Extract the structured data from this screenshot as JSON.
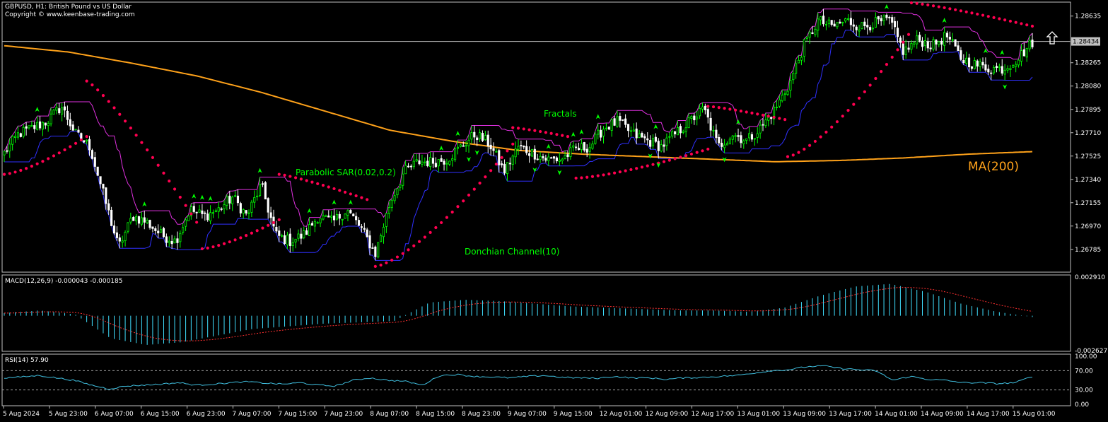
{
  "header": {
    "symbol_line": "GBPUSD, H1:  British Pound vs US Dollar",
    "copyright": "Copyright © www.keenbase-trading.com"
  },
  "annotations": {
    "fractals": "Fractals",
    "parabolic_sar": "Parabolic SAR(0.02,0.2)",
    "donchian": "Donchian Channel(10)",
    "ma": "MA(200)"
  },
  "colors": {
    "background": "#000000",
    "bull": "#00ff00",
    "bear": "#ffffff",
    "sar": "#ff0050",
    "ma": "#ffa21a",
    "donchian_upper": "#e030e0",
    "donchian_lower": "#3030ff",
    "macd_hist": "#40e0ff",
    "macd_signal": "#ff3030",
    "rsi": "#40c0e0",
    "fractal": "#00ff00",
    "grid": "#c0c0c0"
  },
  "icons": {
    "signal": "up-arrow-icon"
  },
  "chart_data": [
    {
      "type": "candlestick",
      "title": "GBPUSD, H1:  British Pound vs US Dollar",
      "current_price": "1.28434",
      "y_ticks": [
        "1.28635",
        "1.28265",
        "1.28080",
        "1.27895",
        "1.27710",
        "1.27525",
        "1.27340",
        "1.27155",
        "1.26970",
        "1.26785"
      ],
      "ylim": [
        1.2661,
        1.2874
      ],
      "x_labels": [
        "5 Aug 2024",
        "5 Aug 23:00",
        "6 Aug 07:00",
        "6 Aug 15:00",
        "6 Aug 23:00",
        "7 Aug 07:00",
        "7 Aug 15:00",
        "7 Aug 23:00",
        "8 Aug 07:00",
        "8 Aug 15:00",
        "8 Aug 23:00",
        "9 Aug 07:00",
        "9 Aug 15:00",
        "12 Aug 01:00",
        "12 Aug 09:00",
        "12 Aug 17:00",
        "13 Aug 01:00",
        "13 Aug 09:00",
        "13 Aug 17:00",
        "14 Aug 01:00",
        "14 Aug 09:00",
        "14 Aug 17:00",
        "15 Aug 01:00"
      ],
      "close_anchors": [
        1.2755,
        1.277,
        1.2775,
        1.278,
        1.2792,
        1.277,
        1.276,
        1.272,
        1.268,
        1.2705,
        1.27,
        1.269,
        1.2685,
        1.271,
        1.2705,
        1.271,
        1.272,
        1.2705,
        1.273,
        1.269,
        1.2685,
        1.269,
        1.2705,
        1.27,
        1.271,
        1.2695,
        1.2675,
        1.2715,
        1.274,
        1.2748,
        1.2748,
        1.275,
        1.276,
        1.277,
        1.2762,
        1.274,
        1.276,
        1.2755,
        1.275,
        1.275,
        1.2758,
        1.276,
        1.2775,
        1.278,
        1.277,
        1.2765,
        1.276,
        1.277,
        1.278,
        1.279,
        1.276,
        1.277,
        1.2765,
        1.2775,
        1.279,
        1.281,
        1.284,
        1.286,
        1.2855,
        1.286,
        1.2855,
        1.2858,
        1.286,
        1.2835,
        1.2845,
        1.284,
        1.2848,
        1.283,
        1.2825,
        1.2822,
        1.2822,
        1.283,
        1.2843
      ],
      "ma200": [
        1.284,
        1.2835,
        1.2826,
        1.2816,
        1.2803,
        1.2788,
        1.2773,
        1.2764,
        1.2757,
        1.2754,
        1.2752,
        1.275,
        1.2748,
        1.2749,
        1.2751,
        1.2754,
        1.2756
      ],
      "sar_segments": [
        {
          "from": 0,
          "to": 30,
          "start": 1.2738,
          "end": 1.2768,
          "dir": "up"
        },
        {
          "from": 30,
          "to": 70,
          "start": 1.2812,
          "end": 1.27,
          "dir": "down"
        },
        {
          "from": 72,
          "to": 100,
          "start": 1.2679,
          "end": 1.2702,
          "dir": "up"
        },
        {
          "from": 100,
          "to": 132,
          "start": 1.2738,
          "end": 1.2718,
          "dir": "down"
        },
        {
          "from": 135,
          "to": 185,
          "start": 1.2665,
          "end": 1.2762,
          "dir": "up"
        },
        {
          "from": 185,
          "to": 205,
          "start": 1.2775,
          "end": 1.2768,
          "dir": "down"
        },
        {
          "from": 208,
          "to": 256,
          "start": 1.2735,
          "end": 1.2758,
          "dir": "up"
        },
        {
          "from": 256,
          "to": 285,
          "start": 1.2792,
          "end": 1.2781,
          "dir": "down"
        },
        {
          "from": 285,
          "to": 330,
          "start": 1.2752,
          "end": 1.2852,
          "dir": "up"
        },
        {
          "from": 330,
          "to": 375,
          "start": 1.2874,
          "end": 1.2855,
          "dir": "down"
        }
      ],
      "macd": {
        "label": "MACD(12,26,9) -0.000043 -0.000185",
        "ticks": [
          "0.002910",
          "-0.002627"
        ],
        "anchors": [
          0.0002,
          0.0004,
          0.0001,
          -0.0017,
          -0.0022,
          -0.002,
          -0.0015,
          -0.001,
          -0.0008,
          -0.0006,
          -0.0005,
          -0.0004,
          0.001,
          0.0012,
          0.0011,
          0.0009,
          0.0007,
          0.0006,
          0.0005,
          0.0004,
          0.0004,
          0.0003,
          0.0006,
          0.0015,
          0.0022,
          0.0024,
          0.0018,
          0.0009,
          0.0003,
          -0.0001
        ]
      },
      "rsi": {
        "label": "RSI(14) 57.90",
        "ticks": [
          "100.00",
          "70.00",
          "30.00",
          "0.00"
        ],
        "levels": [
          70,
          30
        ],
        "anchors": [
          55,
          57,
          60,
          55,
          50,
          40,
          32,
          38,
          40,
          42,
          45,
          40,
          42,
          45,
          47,
          44,
          42,
          45,
          40,
          38,
          50,
          55,
          50,
          48,
          40,
          60,
          62,
          58,
          57,
          55,
          58,
          60,
          56,
          55,
          54,
          58,
          55,
          55,
          52,
          55,
          56,
          58,
          60,
          65,
          70,
          72,
          78,
          80,
          75,
          72,
          70,
          50,
          58,
          52,
          50,
          45,
          45,
          43,
          45,
          58
        ]
      }
    }
  ]
}
